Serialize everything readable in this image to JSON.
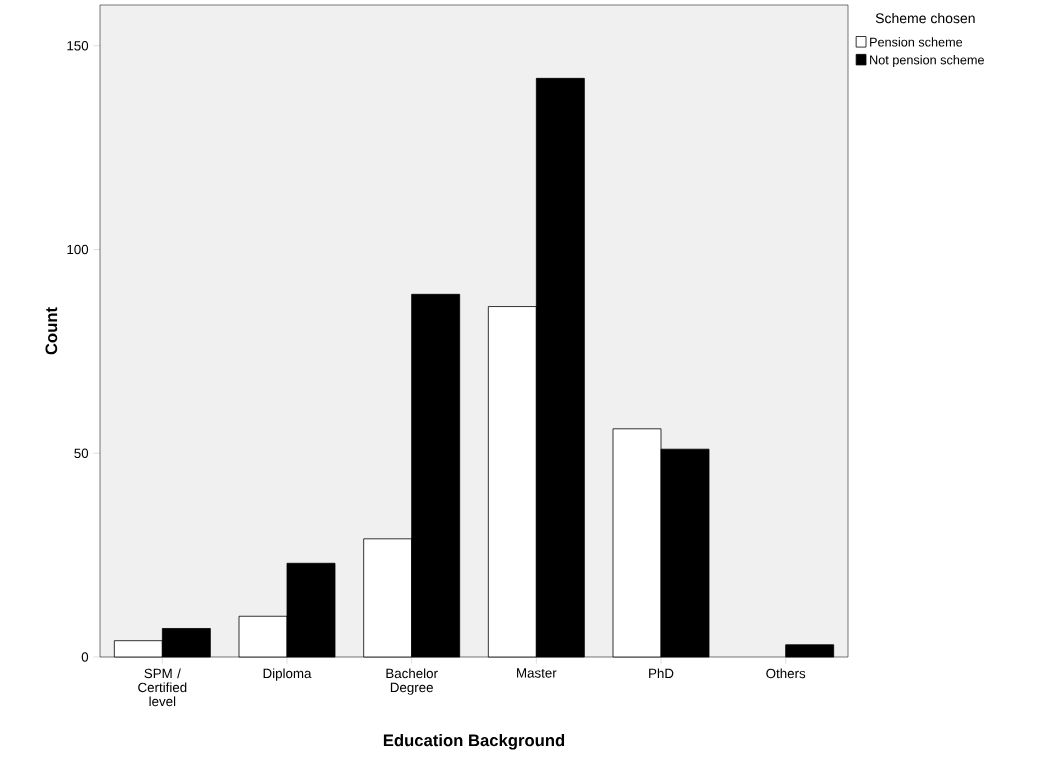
{
  "chart_data": {
    "type": "bar",
    "xlabel": "Education Background",
    "ylabel": "Count",
    "legend_title": "Scheme chosen",
    "categories": [
      "SPM / Certified level",
      "Diploma",
      "Bachelor Degree",
      "Master",
      "PhD",
      "Others"
    ],
    "series": [
      {
        "name": "Pension scheme",
        "color": "#ffffff",
        "values": [
          4,
          10,
          29,
          86,
          56,
          0
        ]
      },
      {
        "name": "Not pension scheme",
        "color": "#000000",
        "values": [
          7,
          23,
          89,
          142,
          51,
          3
        ]
      }
    ],
    "ylim": [
      0,
      160
    ],
    "yticks": [
      0,
      50,
      100,
      150
    ],
    "grid": false,
    "legend": "top right"
  }
}
